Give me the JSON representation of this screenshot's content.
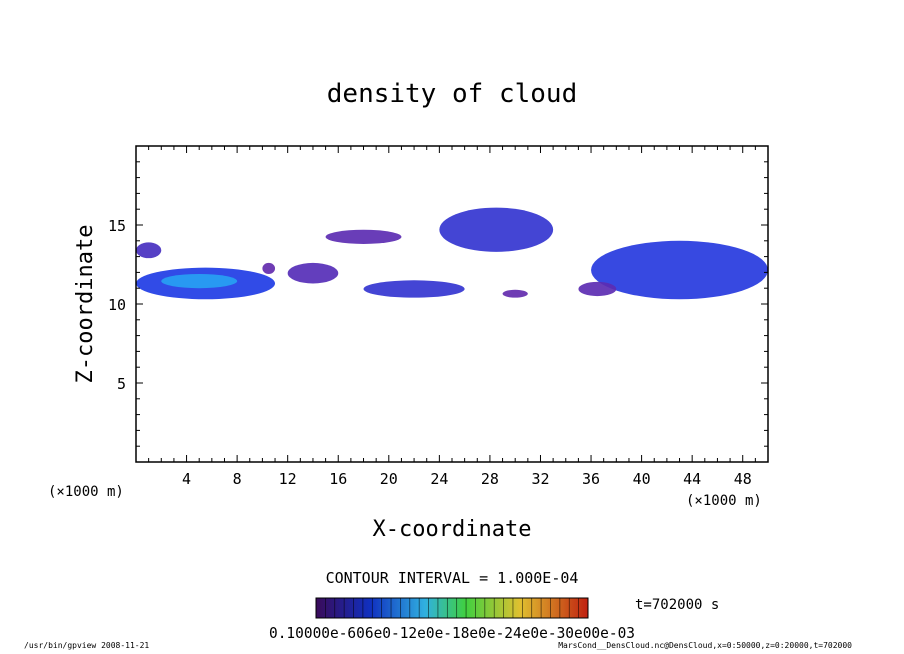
{
  "chart_data": {
    "type": "heatmap",
    "title": "density of cloud",
    "xlabel": "X-coordinate",
    "ylabel": "Z-coordinate",
    "x_units": "(×1000 m)",
    "y_units": "(×1000 m)",
    "xlim": [
      0,
      50
    ],
    "ylim": [
      0,
      20
    ],
    "x_ticks": [
      4,
      8,
      12,
      16,
      20,
      24,
      28,
      32,
      36,
      40,
      44,
      48
    ],
    "x_tick_labels": [
      "4",
      "8",
      "12",
      "16",
      "20",
      "24",
      "28",
      "32",
      "36",
      "40",
      "44",
      "48"
    ],
    "y_ticks": [
      5,
      10,
      15
    ],
    "y_tick_labels": [
      "5",
      "10",
      "15"
    ],
    "contour_interval": "CONTOUR INTERVAL = 1.000E-04",
    "time_label": "t=702000 s",
    "colorbar_labels": "0.10000e-606e0-12e0e-18e0e-24e0e-30e00e-03",
    "colorbar_range": [
      0.0001,
      0.003
    ],
    "cloud_patches": [
      {
        "x": [
          0,
          2
        ],
        "z": [
          12.9,
          13.9
        ],
        "level": 0.0008
      },
      {
        "x": [
          0,
          11
        ],
        "z": [
          10.3,
          12.3
        ],
        "level": 0.0018
      },
      {
        "x": [
          2,
          8
        ],
        "z": [
          11.0,
          11.9
        ],
        "level": 0.0028
      },
      {
        "x": [
          10,
          11
        ],
        "z": [
          11.9,
          12.6
        ],
        "level": 0.0004
      },
      {
        "x": [
          12,
          16
        ],
        "z": [
          11.3,
          12.6
        ],
        "level": 0.0006
      },
      {
        "x": [
          15,
          21
        ],
        "z": [
          13.8,
          14.7
        ],
        "level": 0.0005
      },
      {
        "x": [
          18,
          26
        ],
        "z": [
          10.4,
          11.5
        ],
        "level": 0.0012
      },
      {
        "x": [
          24,
          33
        ],
        "z": [
          13.3,
          16.1
        ],
        "level": 0.0012
      },
      {
        "x": [
          29,
          31
        ],
        "z": [
          10.4,
          10.9
        ],
        "level": 0.0004
      },
      {
        "x": [
          36,
          50
        ],
        "z": [
          10.3,
          14.0
        ],
        "level": 0.0016
      },
      {
        "x": [
          35,
          38
        ],
        "z": [
          10.5,
          11.4
        ],
        "level": 0.0005
      }
    ]
  },
  "footer": {
    "left": "/usr/bin/gpview   2008-11-21",
    "right": "MarsCond__DensCloud.nc@DensCloud,x=0:50000,z=0:20000,t=702000"
  }
}
